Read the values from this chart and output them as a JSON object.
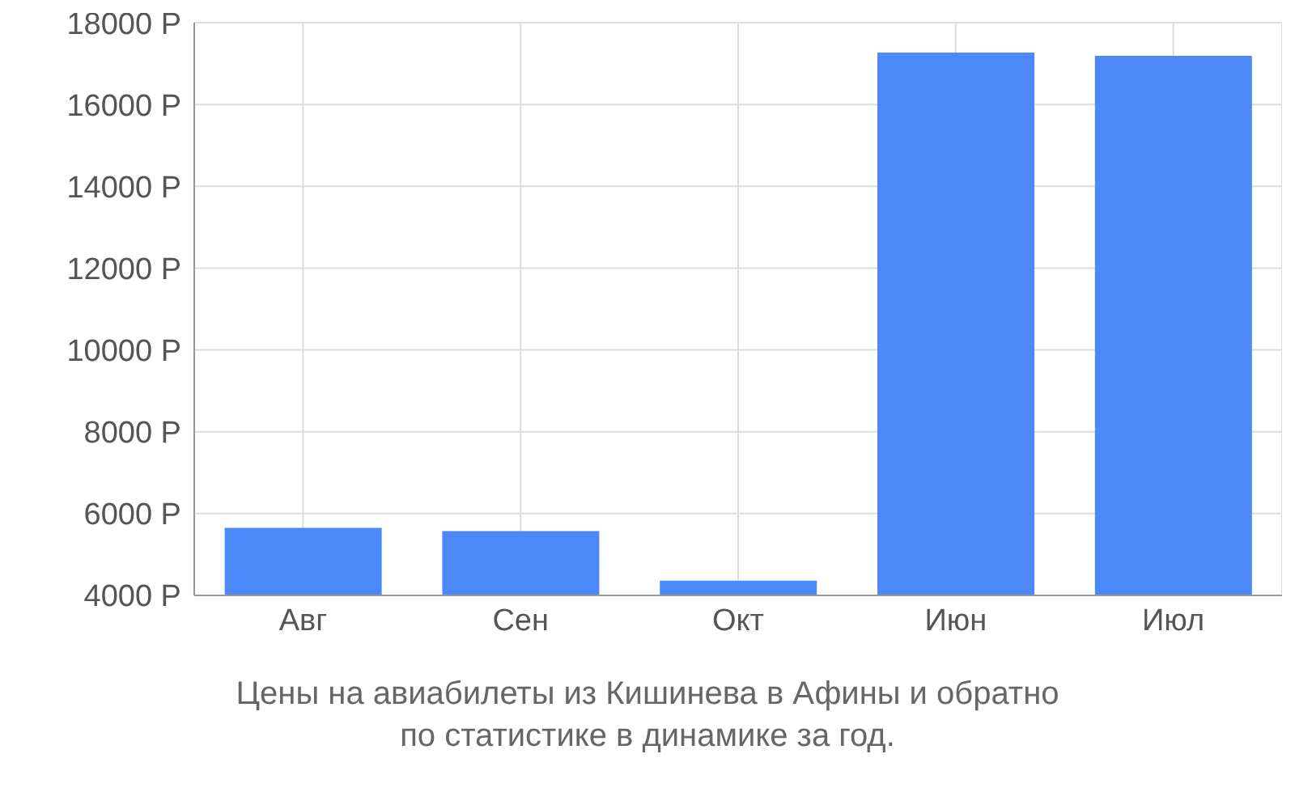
{
  "chart_data": {
    "type": "bar",
    "title": "Цены на авиабилеты из Кишинева в Афины и обратно\nпо статистике в динамике за год.",
    "categories": [
      "Авг",
      "Сен",
      "Окт",
      "Июн",
      "Июл"
    ],
    "values": [
      5650,
      5570,
      4360,
      17270,
      17190
    ],
    "color": "#4d88f8",
    "ylim": [
      4000,
      18000
    ],
    "yticks": [
      {
        "value": 4000,
        "label": "4000 Р"
      },
      {
        "value": 6000,
        "label": "6000 Р"
      },
      {
        "value": 8000,
        "label": "8000 Р"
      },
      {
        "value": 10000,
        "label": "10000 Р"
      },
      {
        "value": 12000,
        "label": "12000 Р"
      },
      {
        "value": 14000,
        "label": "14000 Р"
      },
      {
        "value": 16000,
        "label": "16000 Р"
      },
      {
        "value": 18000,
        "label": "18000 Р"
      }
    ],
    "grid": true
  }
}
